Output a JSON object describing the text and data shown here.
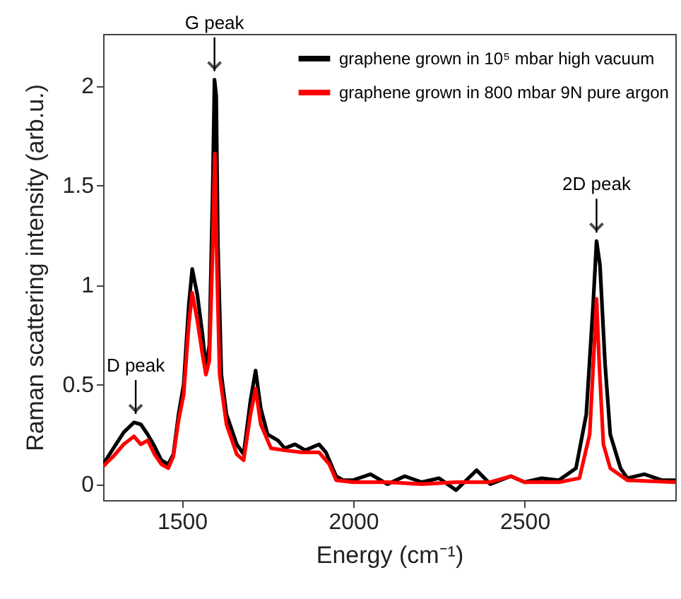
{
  "chart_data": {
    "type": "line",
    "xlabel": "Energy (cm⁻¹)",
    "ylabel": "Raman scattering intensity (arb.u.)",
    "xlim": [
      1270,
      2940
    ],
    "ylim": [
      -0.08,
      2.26
    ],
    "xticks": [
      1500,
      2000,
      2500
    ],
    "yticks": [
      0,
      0.5,
      1,
      1.5,
      2
    ],
    "grid": false,
    "legend": "top right",
    "annotations": [
      {
        "text": "G peak",
        "x": 1595,
        "y": 2.03
      },
      {
        "text": "D peak",
        "x": 1365,
        "y": 0.31
      },
      {
        "text": "2D peak",
        "x": 2710,
        "y": 1.22
      }
    ],
    "series": [
      {
        "name": "graphene grown in 10⁵ mbar high vacuum",
        "color": "#000000",
        "x": [
          1270,
          1300,
          1330,
          1360,
          1380,
          1400,
          1420,
          1440,
          1460,
          1475,
          1490,
          1505,
          1520,
          1530,
          1545,
          1560,
          1570,
          1580,
          1590,
          1595,
          1600,
          1605,
          1615,
          1630,
          1660,
          1680,
          1700,
          1715,
          1730,
          1750,
          1780,
          1800,
          1830,
          1860,
          1900,
          1920,
          1950,
          1970,
          2000,
          2050,
          2100,
          2150,
          2200,
          2250,
          2300,
          2330,
          2360,
          2400,
          2460,
          2500,
          2550,
          2600,
          2650,
          2680,
          2700,
          2710,
          2720,
          2735,
          2750,
          2780,
          2800,
          2850,
          2900,
          2940
        ],
        "values": [
          0.1,
          0.18,
          0.26,
          0.31,
          0.3,
          0.25,
          0.19,
          0.12,
          0.1,
          0.15,
          0.35,
          0.5,
          0.9,
          1.08,
          0.95,
          0.75,
          0.58,
          0.7,
          1.5,
          2.03,
          1.95,
          1.2,
          0.55,
          0.35,
          0.2,
          0.15,
          0.42,
          0.57,
          0.38,
          0.25,
          0.22,
          0.18,
          0.2,
          0.17,
          0.2,
          0.16,
          0.04,
          0.02,
          0.02,
          0.05,
          0.0,
          0.04,
          0.01,
          0.03,
          -0.03,
          0.02,
          0.07,
          0.0,
          0.04,
          0.01,
          0.03,
          0.02,
          0.08,
          0.35,
          0.9,
          1.22,
          1.1,
          0.6,
          0.25,
          0.08,
          0.03,
          0.05,
          0.02,
          0.02
        ]
      },
      {
        "name": "graphene grown in 800 mbar 9N pure argon",
        "color": "#ff0000",
        "x": [
          1270,
          1300,
          1330,
          1360,
          1380,
          1400,
          1420,
          1440,
          1460,
          1475,
          1490,
          1505,
          1520,
          1530,
          1545,
          1560,
          1570,
          1580,
          1590,
          1596,
          1602,
          1610,
          1630,
          1660,
          1680,
          1700,
          1715,
          1730,
          1760,
          1800,
          1850,
          1900,
          1930,
          1950,
          2000,
          2100,
          2200,
          2300,
          2400,
          2460,
          2500,
          2600,
          2660,
          2690,
          2705,
          2710,
          2718,
          2730,
          2750,
          2800,
          2940
        ],
        "values": [
          0.09,
          0.14,
          0.2,
          0.24,
          0.2,
          0.22,
          0.15,
          0.1,
          0.08,
          0.14,
          0.32,
          0.45,
          0.8,
          0.96,
          0.82,
          0.65,
          0.55,
          0.62,
          1.2,
          1.66,
          1.1,
          0.55,
          0.3,
          0.15,
          0.12,
          0.35,
          0.48,
          0.3,
          0.18,
          0.17,
          0.16,
          0.16,
          0.1,
          0.02,
          0.01,
          0.01,
          0.0,
          0.01,
          0.01,
          0.04,
          0.01,
          0.01,
          0.03,
          0.25,
          0.75,
          0.93,
          0.6,
          0.2,
          0.08,
          0.02,
          0.01
        ]
      }
    ]
  }
}
